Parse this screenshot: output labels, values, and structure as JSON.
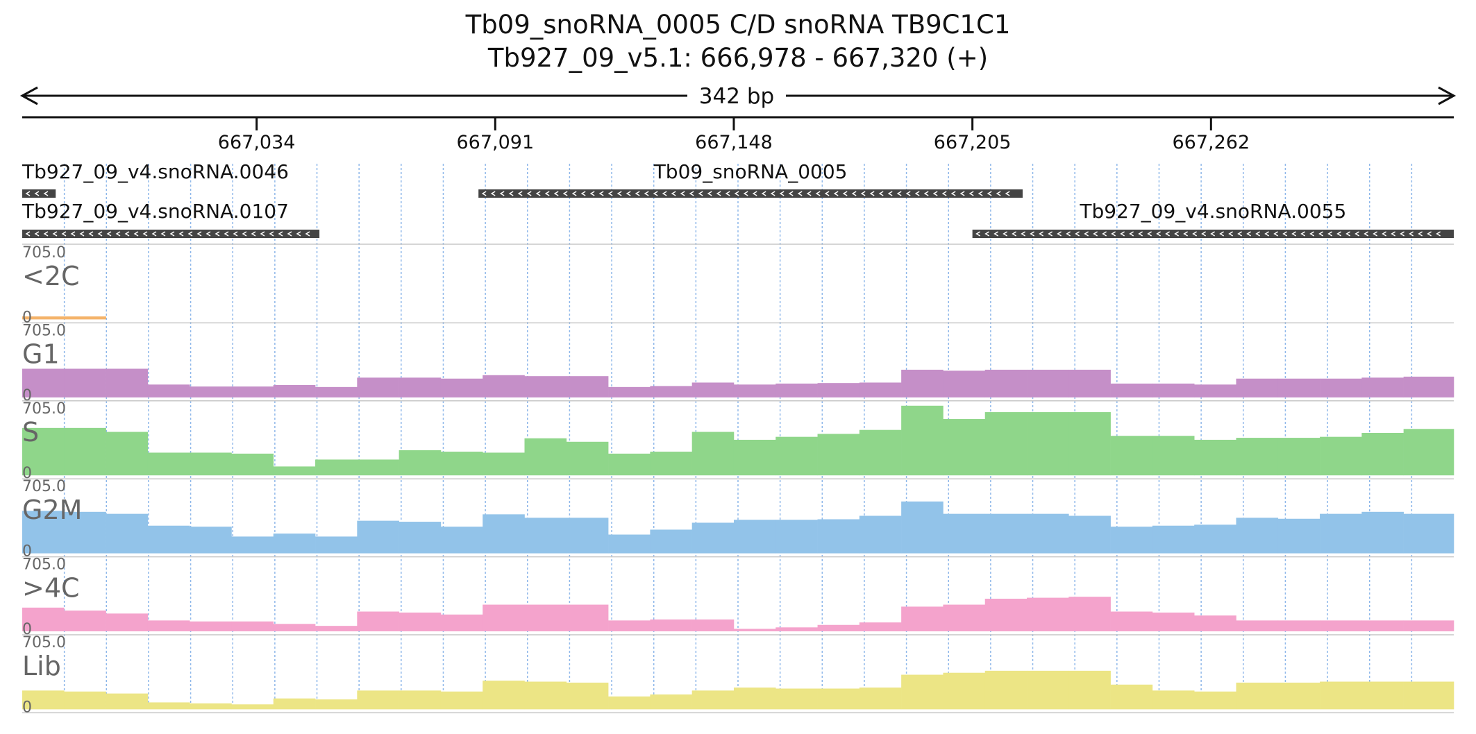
{
  "header": {
    "title": "Tb09_snoRNA_0005  C/D snoRNA  TB9C1C1",
    "location": "Tb927_09_v5.1: 666,978 - 667,320 (+)",
    "span_label": "342 bp"
  },
  "axis": {
    "ticks": [
      "667,034",
      "667,091",
      "667,148",
      "667,205",
      "667,262"
    ]
  },
  "colors": {
    "feature": "#444444",
    "<2C": "#f4b36a",
    "G1": "#c58fc8",
    "S": "#8fd68a",
    "G2M": "#92c3e9",
    ">4C": "#f4a3cc",
    "Lib": "#ece585",
    "grid": "#8fb8ea"
  },
  "features": [
    {
      "label": "Tb927_09_v4.snoRNA.0046",
      "strand": "-"
    },
    {
      "label": "Tb09_snoRNA_0005",
      "strand": "-"
    },
    {
      "label": "Tb927_09_v4.snoRNA.0107",
      "strand": "-"
    },
    {
      "label": "Tb927_09_v4.snoRNA.0055",
      "strand": "-"
    }
  ],
  "chart_data": {
    "type": "area",
    "region": {
      "chrom": "Tb927_09_v5.1",
      "start": 666978,
      "end": 667320,
      "strand": "+"
    },
    "ylim": [
      0,
      705.0
    ],
    "ymax_label": "705.0",
    "ymin_label": "0",
    "bin_starts": [
      666978,
      666988,
      666998,
      667008,
      667018,
      667028,
      667038,
      667048,
      667058,
      667068,
      667078,
      667088,
      667098,
      667108,
      667118,
      667128,
      667138,
      667148,
      667158,
      667168,
      667178,
      667188,
      667198,
      667208,
      667218,
      667228,
      667238,
      667248,
      667258,
      667268,
      667278,
      667288,
      667298,
      667308
    ],
    "series": [
      {
        "name": "<2C",
        "values": [
          30,
          30,
          0,
          0,
          0,
          0,
          0,
          0,
          0,
          0,
          0,
          0,
          0,
          0,
          0,
          0,
          0,
          0,
          0,
          0,
          0,
          0,
          0,
          0,
          0,
          0,
          0,
          0,
          0,
          0,
          0,
          0,
          0,
          0
        ]
      },
      {
        "name": "G1",
        "values": [
          290,
          290,
          290,
          130,
          110,
          110,
          125,
          105,
          200,
          200,
          190,
          225,
          215,
          215,
          105,
          115,
          150,
          130,
          140,
          145,
          150,
          280,
          270,
          280,
          280,
          280,
          140,
          140,
          130,
          190,
          190,
          190,
          200,
          210
        ]
      },
      {
        "name": "S",
        "values": [
          480,
          480,
          440,
          230,
          230,
          220,
          90,
          160,
          160,
          255,
          240,
          230,
          375,
          340,
          220,
          240,
          440,
          360,
          390,
          420,
          460,
          705,
          570,
          640,
          640,
          640,
          400,
          400,
          360,
          380,
          380,
          390,
          430,
          470
        ]
      },
      {
        "name": "G2M",
        "values": [
          430,
          420,
          400,
          280,
          270,
          170,
          200,
          170,
          330,
          320,
          270,
          395,
          360,
          360,
          190,
          240,
          310,
          340,
          340,
          345,
          380,
          525,
          400,
          400,
          400,
          380,
          270,
          280,
          290,
          360,
          350,
          400,
          420,
          400
        ]
      },
      {
        "name": ">4C",
        "values": [
          240,
          210,
          180,
          110,
          100,
          100,
          75,
          55,
          200,
          190,
          170,
          270,
          270,
          270,
          110,
          120,
          120,
          25,
          40,
          65,
          90,
          250,
          270,
          330,
          340,
          350,
          200,
          190,
          160,
          110,
          110,
          110,
          110,
          110
        ]
      },
      {
        "name": "Lib",
        "values": [
          190,
          180,
          160,
          70,
          60,
          50,
          110,
          100,
          190,
          190,
          180,
          290,
          280,
          270,
          130,
          150,
          190,
          220,
          210,
          210,
          220,
          350,
          370,
          390,
          390,
          390,
          250,
          190,
          180,
          270,
          270,
          280,
          280,
          280
        ]
      }
    ]
  }
}
